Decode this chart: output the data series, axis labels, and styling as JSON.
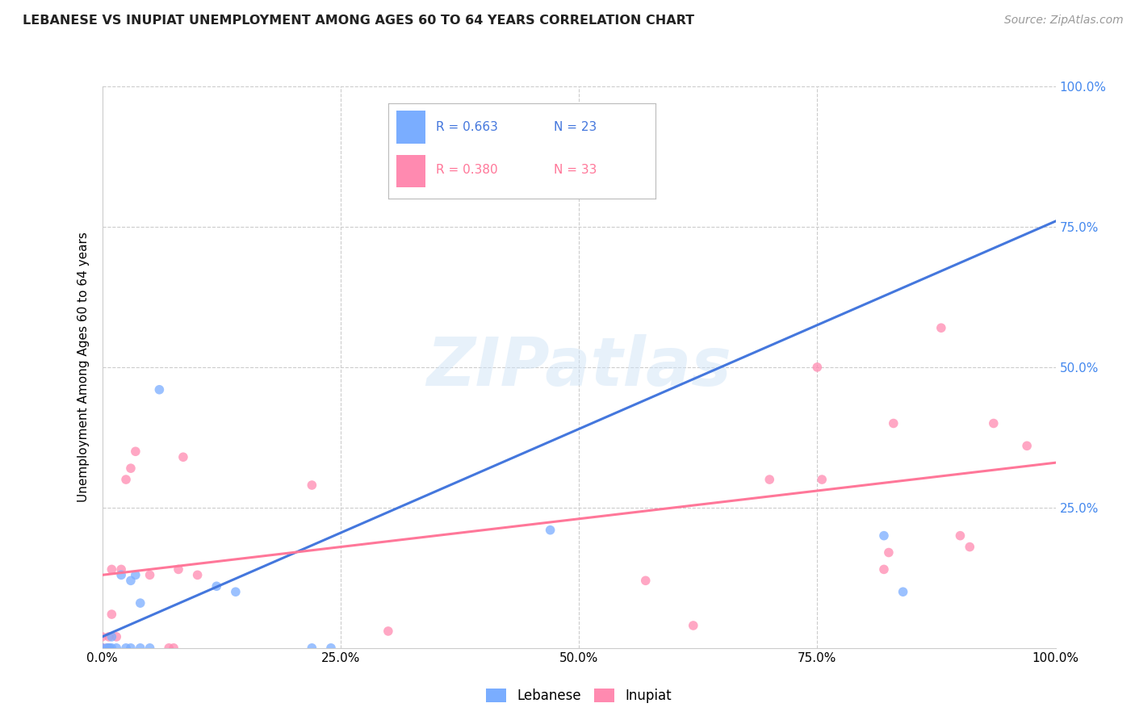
{
  "title": "LEBANESE VS INUPIAT UNEMPLOYMENT AMONG AGES 60 TO 64 YEARS CORRELATION CHART",
  "source": "Source: ZipAtlas.com",
  "ylabel": "Unemployment Among Ages 60 to 64 years",
  "xlim": [
    0,
    1.0
  ],
  "ylim": [
    0,
    1.0
  ],
  "xticks": [
    0.0,
    0.25,
    0.5,
    0.75,
    1.0
  ],
  "yticks": [
    0.0,
    0.25,
    0.5,
    0.75,
    1.0
  ],
  "xticklabels": [
    "0.0%",
    "25.0%",
    "50.0%",
    "75.0%",
    "100.0%"
  ],
  "right_yticklabels": [
    "",
    "25.0%",
    "50.0%",
    "75.0%",
    "100.0%"
  ],
  "background_color": "#ffffff",
  "grid_color": "#cccccc",
  "watermark_text": "ZIPatlas",
  "legend_R_blue": "R = 0.663",
  "legend_N_blue": "N = 23",
  "legend_R_pink": "R = 0.380",
  "legend_N_pink": "N = 33",
  "blue_color": "#7aadff",
  "pink_color": "#ff8ab0",
  "blue_line_color": "#4477dd",
  "pink_line_color": "#ff7799",
  "right_axis_color": "#4488ee",
  "scatter_size": 70,
  "blue_line_x": [
    0.0,
    1.0
  ],
  "blue_line_y": [
    0.02,
    0.76
  ],
  "pink_line_x": [
    0.0,
    1.0
  ],
  "pink_line_y": [
    0.13,
    0.33
  ],
  "lebanese_x": [
    0.0,
    0.005,
    0.007,
    0.008,
    0.01,
    0.01,
    0.015,
    0.02,
    0.025,
    0.03,
    0.03,
    0.035,
    0.04,
    0.04,
    0.05,
    0.06,
    0.12,
    0.14,
    0.22,
    0.24,
    0.47,
    0.82,
    0.84
  ],
  "lebanese_y": [
    0.0,
    0.0,
    0.0,
    0.0,
    0.0,
    0.02,
    0.0,
    0.13,
    0.0,
    0.0,
    0.12,
    0.13,
    0.0,
    0.08,
    0.0,
    0.46,
    0.11,
    0.1,
    0.0,
    0.0,
    0.21,
    0.2,
    0.1
  ],
  "inupiat_x": [
    0.0,
    0.0,
    0.0,
    0.005,
    0.007,
    0.01,
    0.01,
    0.015,
    0.02,
    0.025,
    0.03,
    0.035,
    0.05,
    0.07,
    0.075,
    0.08,
    0.085,
    0.1,
    0.22,
    0.3,
    0.57,
    0.62,
    0.7,
    0.75,
    0.755,
    0.82,
    0.825,
    0.83,
    0.88,
    0.9,
    0.91,
    0.935,
    0.97
  ],
  "inupiat_y": [
    0.0,
    0.0,
    0.02,
    0.0,
    0.02,
    0.06,
    0.14,
    0.02,
    0.14,
    0.3,
    0.32,
    0.35,
    0.13,
    0.0,
    0.0,
    0.14,
    0.34,
    0.13,
    0.29,
    0.03,
    0.12,
    0.04,
    0.3,
    0.5,
    0.3,
    0.14,
    0.17,
    0.4,
    0.57,
    0.2,
    0.18,
    0.4,
    0.36
  ]
}
